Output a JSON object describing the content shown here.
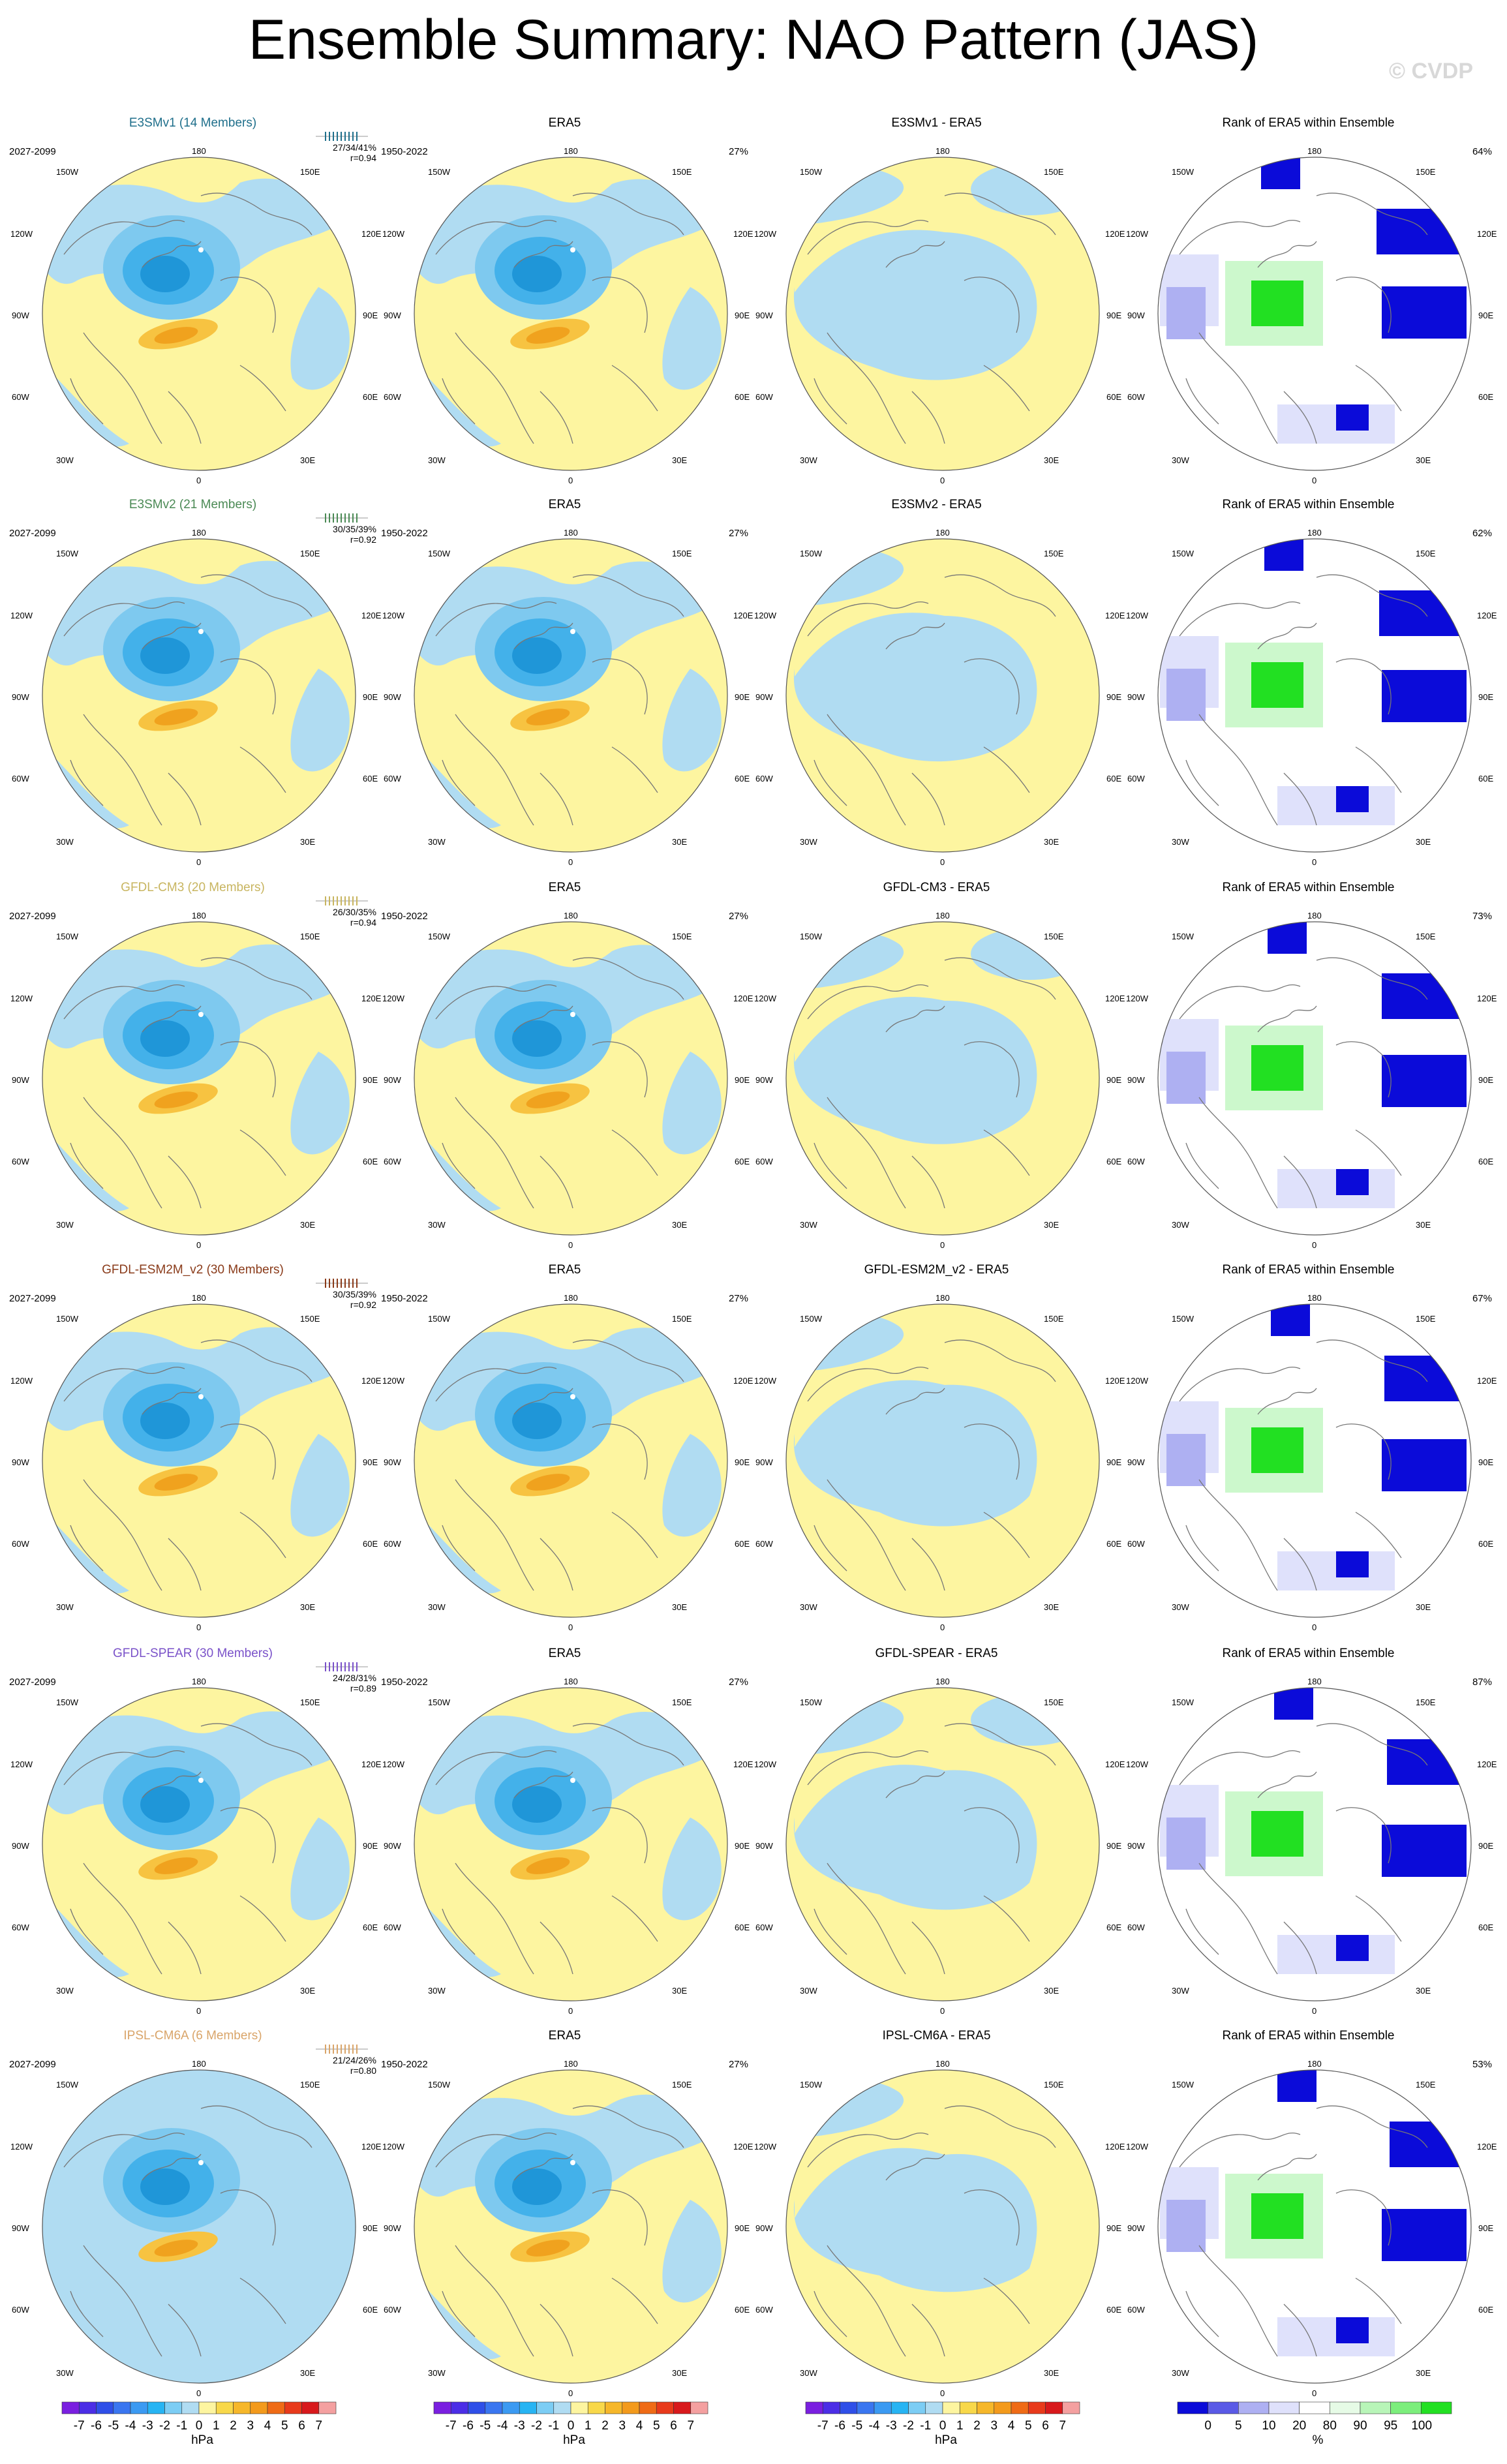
{
  "title": "Ensemble Summary: NAO Pattern (JAS)",
  "watermark": "© CVDP",
  "colors": {
    "pos1": "#fdf5a0",
    "neg1": "#b0dcf2",
    "neg2": "#7ec9ef",
    "neg3": "#43b1ea",
    "neg4": "#1f96d8",
    "pos2": "#f7c341",
    "pos3": "#f0a21e",
    "ocean_line": "#777777",
    "rank_blue": "#0b0bd9",
    "rank_light": "#aeb0f2",
    "rank_pale": "#dfe1fb",
    "rank_green": "#22e022",
    "rank_lightgreen": "#ccf8cc"
  },
  "longitude_labels": {
    "top": "180",
    "upper_left": "150W",
    "upper_right": "150E",
    "left_upper": "120W",
    "right_upper": "120E",
    "left": "90W",
    "right": "90E",
    "left_lower": "60W",
    "right_lower": "60E",
    "lower_left": "30W",
    "lower_right": "30E",
    "bottom": "0"
  },
  "era5": {
    "title": "ERA5",
    "period": "1950-2022",
    "pct": "27%"
  },
  "rank_title": "Rank of ERA5 within Ensemble",
  "rows": [
    {
      "model": "E3SMv1 (14 Members)",
      "model_color": "#1f6f8b",
      "period": "2027-2099",
      "stats1": "27/34/41%",
      "stats2": "r=0.94",
      "diff": "E3SMv1 - ERA5",
      "rank_pct": "64%"
    },
    {
      "model": "E3SMv2 (21 Members)",
      "model_color": "#4b8a55",
      "period": "2027-2099",
      "stats1": "30/35/39%",
      "stats2": "r=0.92",
      "diff": "E3SMv2 - ERA5",
      "rank_pct": "62%"
    },
    {
      "model": "GFDL-CM3 (20 Members)",
      "model_color": "#c8b560",
      "period": "2027-2099",
      "stats1": "26/30/35%",
      "stats2": "r=0.94",
      "diff": "GFDL-CM3 - ERA5",
      "rank_pct": "73%"
    },
    {
      "model": "GFDL-ESM2M_v2 (30 Members)",
      "model_color": "#8a3b1a",
      "period": "2027-2099",
      "stats1": "30/35/39%",
      "stats2": "r=0.92",
      "diff": "GFDL-ESM2M_v2 - ERA5",
      "rank_pct": "67%"
    },
    {
      "model": "GFDL-SPEAR (30 Members)",
      "model_color": "#7a52c9",
      "period": "2027-2099",
      "stats1": "24/28/31%",
      "stats2": "r=0.89",
      "diff": "GFDL-SPEAR - ERA5",
      "rank_pct": "87%"
    },
    {
      "model": "IPSL-CM6A (6 Members)",
      "model_color": "#d9a56a",
      "period": "2027-2099",
      "stats1": "21/24/26%",
      "stats2": "r=0.80",
      "diff": "IPSL-CM6A - ERA5",
      "rank_pct": "53%"
    }
  ],
  "colorbar_hpa": {
    "labels": [
      "-7",
      "-6",
      "-5",
      "-4",
      "-3",
      "-2",
      "-1",
      "0",
      "1",
      "2",
      "3",
      "4",
      "5",
      "6",
      "7"
    ],
    "colors": [
      "#7a1fe0",
      "#4b2ee6",
      "#2f4fe8",
      "#3a76f0",
      "#3b9af2",
      "#27b4f3",
      "#7ccdf4",
      "#b0dcf2",
      "#fdf5a0",
      "#f8d84a",
      "#f6b72a",
      "#f39a1c",
      "#ef6b16",
      "#e83a1b",
      "#d8191c",
      "#f4a0a0"
    ],
    "unit": "hPa"
  },
  "colorbar_rank": {
    "labels": [
      "0",
      "5",
      "10",
      "20",
      "80",
      "90",
      "95",
      "100"
    ],
    "colors": [
      "#0b0bd9",
      "#5a5ae6",
      "#aeb0f2",
      "#dfe1fb",
      "#ffffff",
      "#e6fbe6",
      "#b8f5b8",
      "#7cee7c",
      "#22e022"
    ],
    "unit": "%"
  }
}
